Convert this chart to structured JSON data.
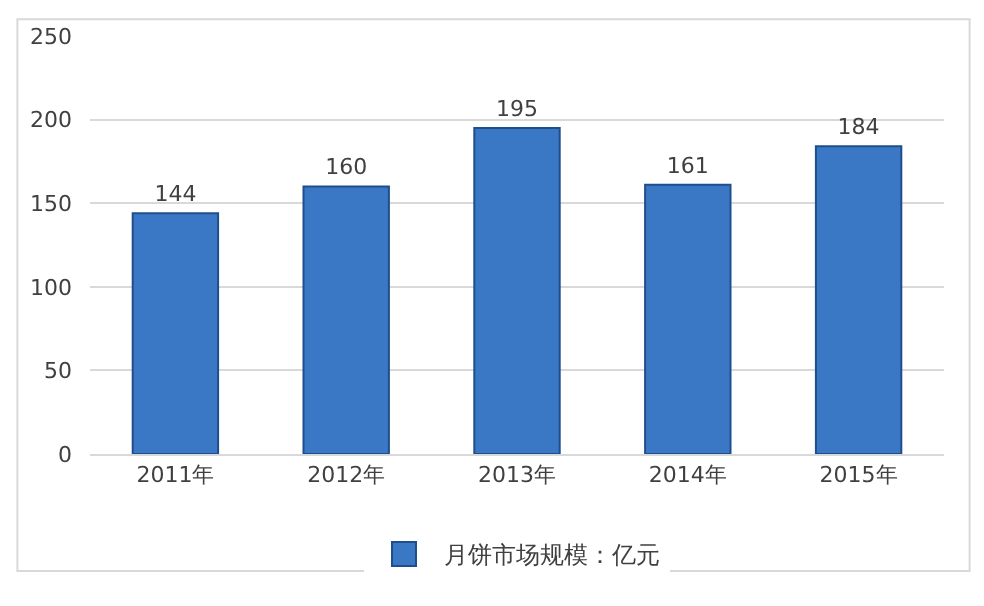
{
  "chart_data": {
    "type": "bar",
    "categories": [
      "2011年",
      "2012年",
      "2013年",
      "2014年",
      "2015年"
    ],
    "series": [
      {
        "name": "月饼市场规模：亿元",
        "color": "#3a78c6",
        "values": [
          144,
          160,
          195,
          161,
          184
        ]
      }
    ],
    "ylim": [
      0,
      250
    ],
    "yticks": [
      0,
      50,
      100,
      150,
      200,
      250
    ],
    "grid": "y",
    "legend": "bottom",
    "data_labels": true
  }
}
